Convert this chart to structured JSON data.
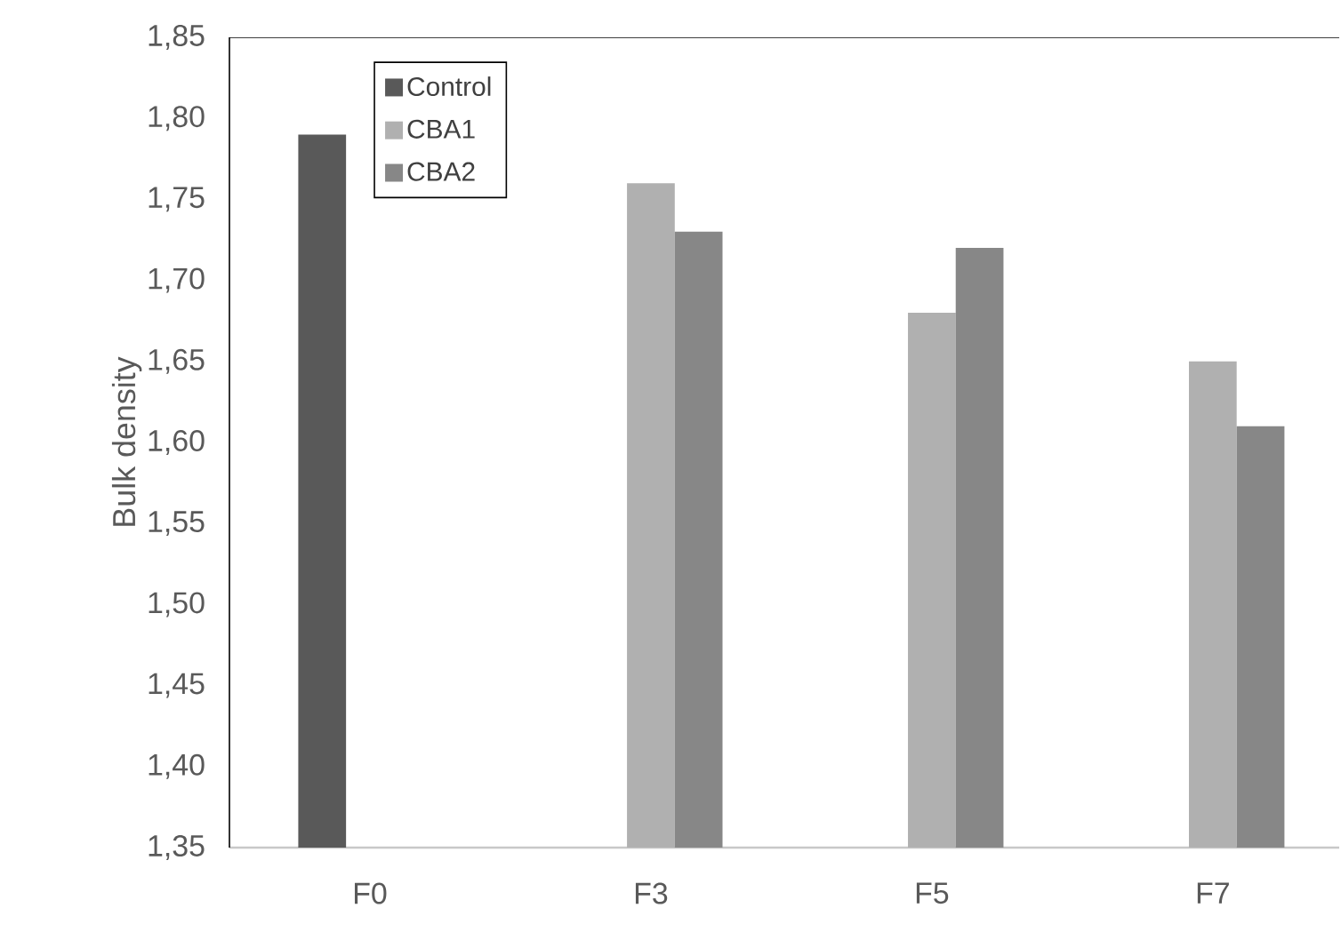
{
  "chart_data": {
    "type": "bar",
    "ylabel": "Bulk density",
    "categories": [
      "F0",
      "F3",
      "F5",
      "F7"
    ],
    "series": [
      {
        "name": "Control",
        "color": "#595959",
        "values": [
          1.79,
          null,
          null,
          null
        ]
      },
      {
        "name": "CBA1",
        "color": "#b0b0b0",
        "values": [
          null,
          1.76,
          1.68,
          1.65
        ]
      },
      {
        "name": "CBA2",
        "color": "#878787",
        "values": [
          null,
          1.73,
          1.72,
          1.61
        ]
      }
    ],
    "ylim": [
      1.35,
      1.85
    ],
    "yticks": [
      {
        "value": 1.35,
        "label": "1,35"
      },
      {
        "value": 1.4,
        "label": "1,40"
      },
      {
        "value": 1.45,
        "label": "1,45"
      },
      {
        "value": 1.5,
        "label": "1,50"
      },
      {
        "value": 1.55,
        "label": "1,55"
      },
      {
        "value": 1.6,
        "label": "1,60"
      },
      {
        "value": 1.65,
        "label": "1,65"
      },
      {
        "value": 1.7,
        "label": "1,70"
      },
      {
        "value": 1.75,
        "label": "1,75"
      },
      {
        "value": 1.8,
        "label": "1,80"
      },
      {
        "value": 1.85,
        "label": "1,85"
      }
    ],
    "grid": false,
    "legend": "top left"
  }
}
